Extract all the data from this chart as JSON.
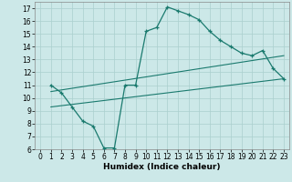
{
  "title": "",
  "xlabel": "Humidex (Indice chaleur)",
  "bg_color": "#cce8e8",
  "grid_color": "#aacfce",
  "line_color": "#1a7a6e",
  "xlim": [
    -0.5,
    23.5
  ],
  "ylim": [
    6,
    17.5
  ],
  "xticks": [
    0,
    1,
    2,
    3,
    4,
    5,
    6,
    7,
    8,
    9,
    10,
    11,
    12,
    13,
    14,
    15,
    16,
    17,
    18,
    19,
    20,
    21,
    22,
    23
  ],
  "yticks": [
    6,
    7,
    8,
    9,
    10,
    11,
    12,
    13,
    14,
    15,
    16,
    17
  ],
  "curve1_x": [
    1,
    2,
    3,
    4,
    5,
    6,
    7,
    8,
    9,
    10,
    11,
    12,
    13,
    14,
    15,
    16,
    17,
    18,
    19,
    20,
    21,
    22,
    23
  ],
  "curve1_y": [
    11.0,
    10.4,
    9.3,
    8.2,
    7.8,
    6.1,
    6.1,
    11.0,
    11.0,
    15.2,
    15.5,
    17.1,
    16.8,
    16.5,
    16.1,
    15.2,
    14.5,
    14.0,
    13.5,
    13.3,
    13.7,
    12.3,
    11.5
  ],
  "curve2_x": [
    1,
    23
  ],
  "curve2_y": [
    10.5,
    13.3
  ],
  "curve3_x": [
    1,
    23
  ],
  "curve3_y": [
    9.3,
    11.5
  ],
  "xlabel_fontsize": 6.5,
  "tick_fontsize": 5.5,
  "linewidth1": 0.9,
  "linewidth2": 0.8,
  "markersize": 3.5
}
